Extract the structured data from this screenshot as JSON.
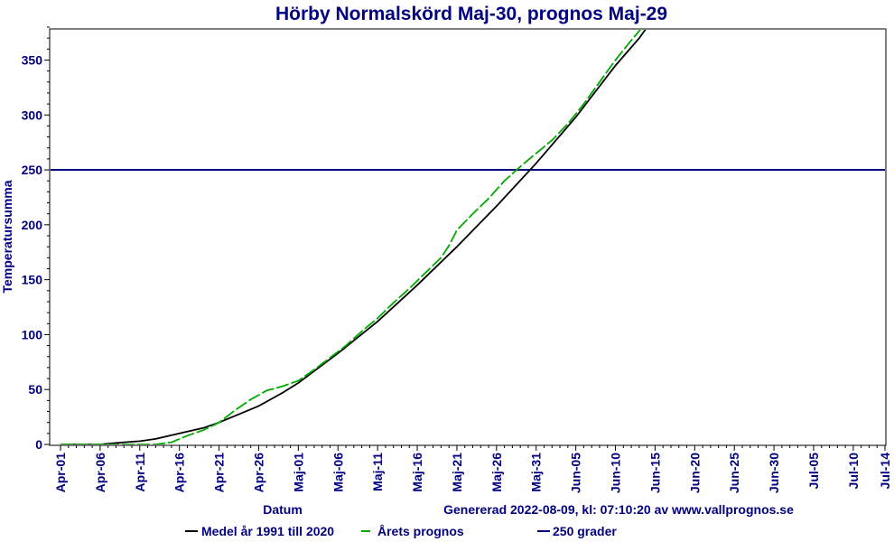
{
  "chart_data": {
    "type": "line",
    "title": "Hörby Normalskörd Maj-30, prognos Maj-29",
    "xlabel": "Datum",
    "ylabel": "Temperatursumma",
    "footer": "Genererad 2022-08-09, kl: 07:10:20 av www.vallprognos.se",
    "x_tick_labels": [
      "Apr-01",
      "Apr-06",
      "Apr-11",
      "Apr-16",
      "Apr-21",
      "Apr-26",
      "Maj-01",
      "Maj-06",
      "Maj-11",
      "Maj-16",
      "Maj-21",
      "Maj-26",
      "Maj-31",
      "Jun-05",
      "Jun-10",
      "Jun-15",
      "Jun-20",
      "Jun-25",
      "Jun-30",
      "Jul-05",
      "Jul-10",
      "Jul-14"
    ],
    "x_tick_days": [
      0,
      5,
      10,
      15,
      20,
      25,
      30,
      35,
      40,
      45,
      50,
      55,
      60,
      65,
      70,
      75,
      80,
      85,
      90,
      95,
      100,
      104
    ],
    "y_ticks": [
      0,
      50,
      100,
      150,
      200,
      250,
      300,
      350
    ],
    "xlim": [
      0,
      104
    ],
    "ylim": [
      0,
      380
    ],
    "series": [
      {
        "name": "Medel år 1991 till 2020",
        "color": "#000000",
        "style": "solid",
        "x": [
          0,
          5,
          8,
          10,
          12,
          15,
          18,
          20,
          22,
          25,
          28,
          30,
          35,
          40,
          45,
          50,
          55,
          60,
          65,
          70,
          73,
          75
        ],
        "y": [
          0,
          0,
          2,
          3,
          5,
          10,
          15,
          20,
          26,
          35,
          47,
          56,
          83,
          112,
          145,
          180,
          217,
          256,
          298,
          345,
          370,
          390
        ]
      },
      {
        "name": "Årets prognos",
        "color": "#00aa00",
        "style": "dashed",
        "x": [
          0,
          10,
          12,
          14,
          16,
          18,
          20,
          22,
          24,
          26,
          28,
          30,
          32,
          34,
          36,
          38,
          40,
          42,
          44,
          46,
          48,
          49,
          50,
          52,
          54,
          56,
          58,
          60,
          62,
          64,
          66,
          68,
          70,
          72,
          74,
          75
        ],
        "y": [
          0,
          0,
          0,
          2,
          8,
          13,
          20,
          31,
          41,
          49,
          53,
          58,
          68,
          79,
          90,
          103,
          115,
          129,
          142,
          156,
          170,
          181,
          195,
          210,
          224,
          240,
          253,
          265,
          277,
          292,
          310,
          330,
          350,
          368,
          385,
          395
        ]
      }
    ],
    "reference_line": {
      "name": "250 grader",
      "value": 250,
      "color": "#000080"
    },
    "legend": {
      "position": "bottom",
      "entries": [
        {
          "label": "Medel år 1991 till 2020",
          "color": "#000000"
        },
        {
          "label": "Årets prognos",
          "color": "#00aa00"
        },
        {
          "label": "250 grader",
          "color": "#000080"
        }
      ]
    },
    "grid": false
  }
}
